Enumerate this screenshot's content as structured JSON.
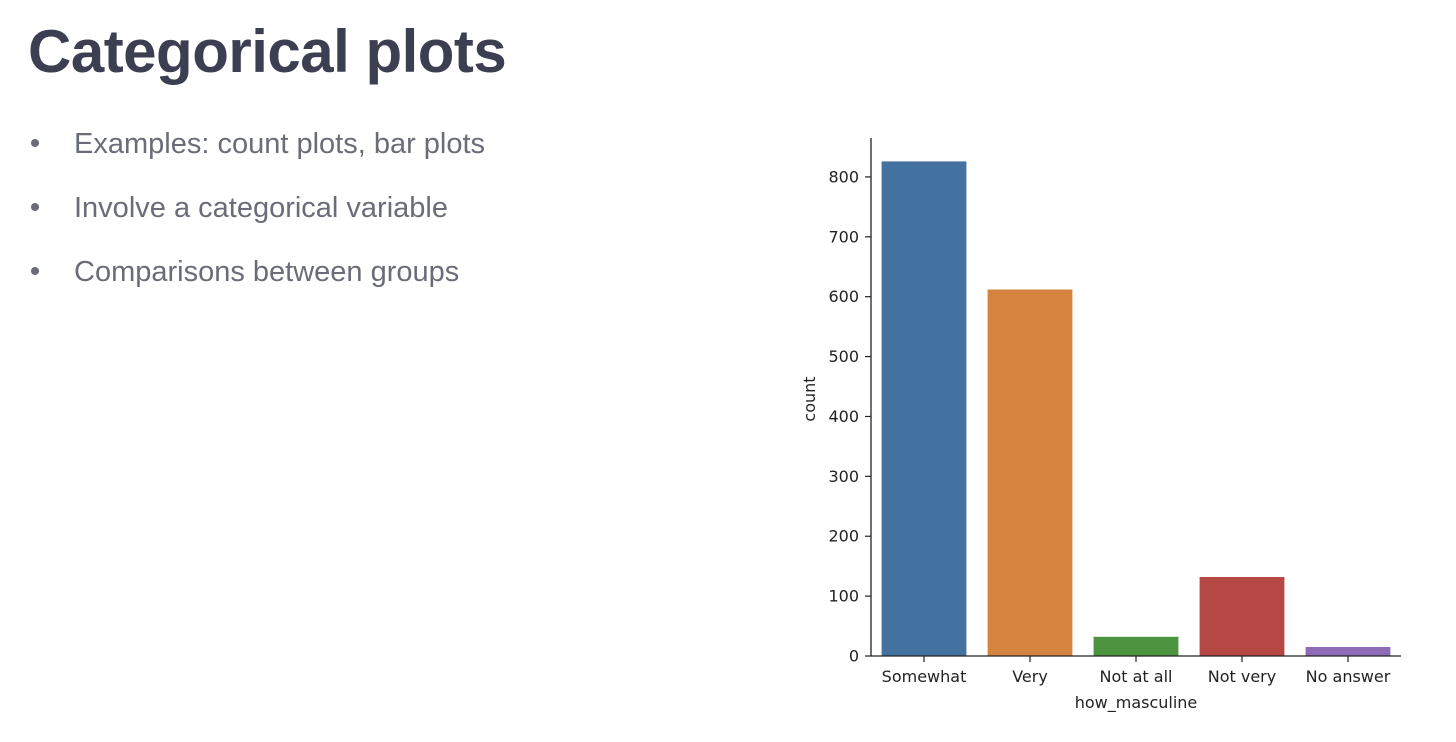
{
  "slide": {
    "title": "Categorical plots",
    "bullets": [
      "Examples: count plots, bar plots",
      "Involve a categorical variable",
      "Comparisons between groups"
    ]
  },
  "chart_data": {
    "type": "bar",
    "categories": [
      "Somewhat",
      "Very",
      "Not at all",
      "Not very",
      "No answer"
    ],
    "values": [
      826,
      612,
      32,
      132,
      15
    ],
    "colors": [
      "#4472a0",
      "#d4843e",
      "#4d9441",
      "#b54745",
      "#8d6bb7"
    ],
    "xlabel": "how_masculine",
    "ylabel": "count",
    "ylim": [
      0,
      865
    ],
    "yticks": [
      0,
      100,
      200,
      300,
      400,
      500,
      600,
      700,
      800
    ],
    "grid": false,
    "legend": "none"
  }
}
